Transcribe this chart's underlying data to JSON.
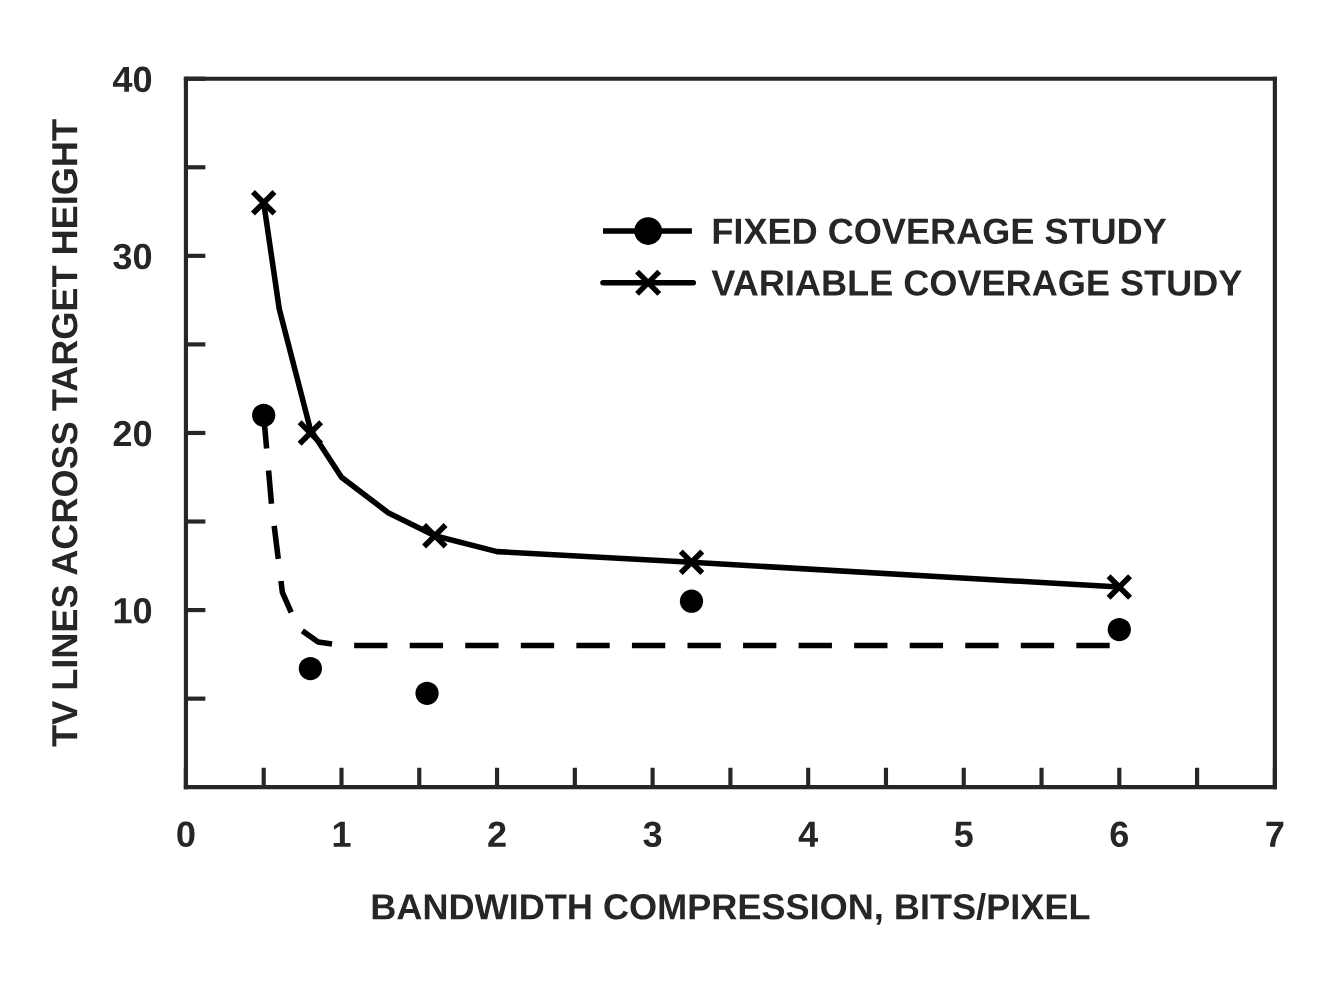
{
  "chart_data": {
    "type": "scatter",
    "xlabel": "BANDWIDTH COMPRESSION, BITS/PIXEL",
    "ylabel": "TV LINES ACROSS TARGET HEIGHT",
    "xlim": [
      0,
      7
    ],
    "ylim": [
      0,
      40
    ],
    "xticks": [
      0,
      {
        "value": 0.5,
        "label": null
      },
      1,
      {
        "value": 1.5,
        "label": null
      },
      2,
      {
        "value": 2.5,
        "label": null
      },
      3,
      {
        "value": 3.5,
        "label": null
      },
      4,
      {
        "value": 4.5,
        "label": null
      },
      5,
      {
        "value": 5.5,
        "label": null
      },
      6,
      {
        "value": 6.5,
        "label": null
      },
      7
    ],
    "yticks": [
      {
        "value": 5,
        "label": null
      },
      10,
      {
        "value": 15,
        "label": null
      },
      20,
      {
        "value": 25,
        "label": null
      },
      30,
      {
        "value": 35,
        "label": null
      },
      40
    ],
    "grid": false,
    "legend": "top right",
    "series": [
      {
        "name": "FIXED COVERAGE STUDY",
        "type": "scatter",
        "marker": "circle",
        "line_style": "dashed",
        "color": "#000000",
        "x": [
          0.5,
          0.8,
          1.55,
          3.25,
          6
        ],
        "values": [
          21,
          6.7,
          5.3,
          10.5,
          8.9
        ]
      },
      {
        "name": "VARIABLE COVERAGE STUDY",
        "type": "scatter",
        "marker": "cross",
        "line_style": "solid",
        "color": "#000000",
        "x": [
          0.5,
          0.8,
          1.6,
          3.25,
          6
        ],
        "values": [
          33,
          20,
          14.2,
          12.7,
          11.3
        ]
      },
      {
        "type": "line",
        "line_style": "dashed",
        "color": "#000000",
        "x": [
          0.5,
          0.55,
          0.62,
          0.72,
          0.85,
          1,
          3,
          6
        ],
        "values": [
          21,
          16,
          11,
          9,
          8.2,
          8,
          8,
          8
        ]
      },
      {
        "type": "line",
        "line_style": "solid",
        "color": "#000000",
        "x": [
          0.5,
          0.6,
          0.8,
          1,
          1.3,
          1.6,
          2,
          3.25,
          6
        ],
        "values": [
          33,
          27,
          20.2,
          17.5,
          15.5,
          14.2,
          13.3,
          12.7,
          11.3
        ]
      }
    ]
  }
}
